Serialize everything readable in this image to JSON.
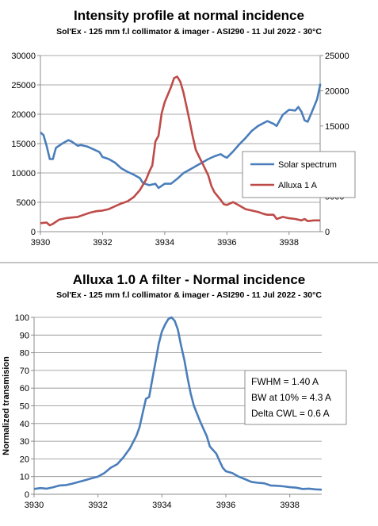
{
  "chart_data": [
    {
      "type": "line",
      "title": "Intensity profile at normal incidence",
      "subtitle": "Sol'Ex - 125 mm f.l collimator & imager - ASI290 - 11 Jul 2022 - 30°C",
      "xlabel": "",
      "ylabel": "",
      "xlim": [
        3930,
        3939
      ],
      "ylim_left": [
        0,
        30000
      ],
      "ylim_right": [
        0,
        25000
      ],
      "x_ticks": [
        "3930",
        "3932",
        "3934",
        "3936",
        "3938"
      ],
      "y_ticks_left": [
        "0",
        "5000",
        "10000",
        "15000",
        "20000",
        "25000",
        "30000"
      ],
      "y_ticks_right": [
        "0",
        "5000",
        "10000",
        "15000",
        "20000",
        "25000"
      ],
      "grid": "horizontal",
      "legend": "right",
      "series": [
        {
          "name": "Solar spectrum",
          "axis": "right",
          "color": "#4a7ebb",
          "points": [
            [
              3930.0,
              14100
            ],
            [
              3930.1,
              13700
            ],
            [
              3930.2,
              12200
            ],
            [
              3930.3,
              10300
            ],
            [
              3930.4,
              10300
            ],
            [
              3930.5,
              11900
            ],
            [
              3930.7,
              12500
            ],
            [
              3930.9,
              13000
            ],
            [
              3931.0,
              12800
            ],
            [
              3931.2,
              12200
            ],
            [
              3931.3,
              12300
            ],
            [
              3931.5,
              12100
            ],
            [
              3931.7,
              11700
            ],
            [
              3931.9,
              11300
            ],
            [
              3932.0,
              10600
            ],
            [
              3932.2,
              10300
            ],
            [
              3932.4,
              9800
            ],
            [
              3932.6,
              9000
            ],
            [
              3932.8,
              8500
            ],
            [
              3933.0,
              8100
            ],
            [
              3933.2,
              7600
            ],
            [
              3933.3,
              6900
            ],
            [
              3933.5,
              6600
            ],
            [
              3933.7,
              6800
            ],
            [
              3933.8,
              6200
            ],
            [
              3934.0,
              6800
            ],
            [
              3934.2,
              6800
            ],
            [
              3934.4,
              7500
            ],
            [
              3934.6,
              8300
            ],
            [
              3934.8,
              8800
            ],
            [
              3935.0,
              9300
            ],
            [
              3935.2,
              9800
            ],
            [
              3935.4,
              10300
            ],
            [
              3935.6,
              10700
            ],
            [
              3935.8,
              11000
            ],
            [
              3935.9,
              10700
            ],
            [
              3936.0,
              10500
            ],
            [
              3936.2,
              11400
            ],
            [
              3936.4,
              12400
            ],
            [
              3936.6,
              13300
            ],
            [
              3936.8,
              14300
            ],
            [
              3937.0,
              15000
            ],
            [
              3937.3,
              15700
            ],
            [
              3937.5,
              15300
            ],
            [
              3937.6,
              15000
            ],
            [
              3937.8,
              16600
            ],
            [
              3938.0,
              17300
            ],
            [
              3938.2,
              17200
            ],
            [
              3938.3,
              17700
            ],
            [
              3938.4,
              17000
            ],
            [
              3938.5,
              15800
            ],
            [
              3938.6,
              15600
            ],
            [
              3938.8,
              17700
            ],
            [
              3938.9,
              18800
            ],
            [
              3939.0,
              20800
            ],
            [
              3939.0,
              21000
            ]
          ]
        },
        {
          "name": "Alluxa 1 A",
          "axis": "right",
          "color": "#be4b48",
          "points": [
            [
              3930.0,
              1200
            ],
            [
              3930.2,
              1300
            ],
            [
              3930.3,
              900
            ],
            [
              3930.4,
              1100
            ],
            [
              3930.6,
              1700
            ],
            [
              3930.8,
              1900
            ],
            [
              3931.0,
              2000
            ],
            [
              3931.2,
              2100
            ],
            [
              3931.4,
              2400
            ],
            [
              3931.6,
              2700
            ],
            [
              3931.8,
              2900
            ],
            [
              3932.0,
              3000
            ],
            [
              3932.2,
              3200
            ],
            [
              3932.4,
              3600
            ],
            [
              3932.6,
              4000
            ],
            [
              3932.8,
              4300
            ],
            [
              3933.0,
              4900
            ],
            [
              3933.2,
              5900
            ],
            [
              3933.4,
              7400
            ],
            [
              3933.5,
              8500
            ],
            [
              3933.6,
              9400
            ],
            [
              3933.7,
              12800
            ],
            [
              3933.8,
              13600
            ],
            [
              3933.9,
              16800
            ],
            [
              3934.0,
              18400
            ],
            [
              3934.2,
              20500
            ],
            [
              3934.3,
              21800
            ],
            [
              3934.4,
              22000
            ],
            [
              3934.5,
              21300
            ],
            [
              3934.6,
              19800
            ],
            [
              3934.7,
              17800
            ],
            [
              3934.8,
              15700
            ],
            [
              3934.9,
              13500
            ],
            [
              3935.0,
              11600
            ],
            [
              3935.2,
              9800
            ],
            [
              3935.4,
              8000
            ],
            [
              3935.5,
              6500
            ],
            [
              3935.6,
              5600
            ],
            [
              3935.8,
              4500
            ],
            [
              3935.9,
              3900
            ],
            [
              3936.0,
              3800
            ],
            [
              3936.2,
              4200
            ],
            [
              3936.4,
              3700
            ],
            [
              3936.6,
              3200
            ],
            [
              3936.8,
              3000
            ],
            [
              3937.0,
              2800
            ],
            [
              3937.2,
              2500
            ],
            [
              3937.3,
              2400
            ],
            [
              3937.5,
              2400
            ],
            [
              3937.6,
              1800
            ],
            [
              3937.8,
              2100
            ],
            [
              3938.0,
              1900
            ],
            [
              3938.2,
              1800
            ],
            [
              3938.4,
              1600
            ],
            [
              3938.5,
              1800
            ],
            [
              3938.6,
              1500
            ],
            [
              3938.8,
              1600
            ],
            [
              3939.0,
              1600
            ]
          ]
        }
      ]
    },
    {
      "type": "line",
      "title": "Alluxa 1.0 A filter - Normal incidence",
      "subtitle": "Sol'Ex - 125 mm f.l collimator & imager - ASI290 - 11 Jul 2022 - 30°C",
      "xlabel": "",
      "ylabel": "Normalized transmision",
      "xlim": [
        3930,
        3939
      ],
      "ylim": [
        0,
        100
      ],
      "x_ticks": [
        "3930",
        "3932",
        "3934",
        "3936",
        "3938"
      ],
      "y_ticks": [
        "0",
        "10",
        "20",
        "30",
        "40",
        "50",
        "60",
        "70",
        "80",
        "90",
        "100"
      ],
      "grid": "horizontal",
      "annotation": [
        "FWHM = 1.40  A",
        "BW at 10% = 4.3 A",
        "Delta CWL = 0.6 A"
      ],
      "series": [
        {
          "color": "#4a7ebb",
          "points": [
            [
              3930.0,
              3
            ],
            [
              3930.2,
              3.5
            ],
            [
              3930.4,
              3.2
            ],
            [
              3930.6,
              4
            ],
            [
              3930.8,
              5
            ],
            [
              3931.0,
              5.2
            ],
            [
              3931.2,
              6
            ],
            [
              3931.4,
              7
            ],
            [
              3931.6,
              8
            ],
            [
              3931.8,
              9
            ],
            [
              3932.0,
              10
            ],
            [
              3932.2,
              12
            ],
            [
              3932.4,
              15
            ],
            [
              3932.6,
              17
            ],
            [
              3932.8,
              21
            ],
            [
              3933.0,
              26
            ],
            [
              3933.2,
              33
            ],
            [
              3933.3,
              38
            ],
            [
              3933.4,
              46
            ],
            [
              3933.5,
              54
            ],
            [
              3933.6,
              55
            ],
            [
              3933.7,
              65
            ],
            [
              3933.8,
              75
            ],
            [
              3933.9,
              85
            ],
            [
              3934.0,
              92
            ],
            [
              3934.1,
              96
            ],
            [
              3934.2,
              99
            ],
            [
              3934.3,
              100
            ],
            [
              3934.4,
              98
            ],
            [
              3934.5,
              93
            ],
            [
              3934.6,
              84
            ],
            [
              3934.7,
              76
            ],
            [
              3934.8,
              66
            ],
            [
              3934.9,
              57
            ],
            [
              3935.0,
              50
            ],
            [
              3935.2,
              41
            ],
            [
              3935.4,
              33
            ],
            [
              3935.5,
              27
            ],
            [
              3935.7,
              23
            ],
            [
              3935.8,
              19
            ],
            [
              3935.9,
              15
            ],
            [
              3936.0,
              13
            ],
            [
              3936.2,
              12
            ],
            [
              3936.4,
              10
            ],
            [
              3936.6,
              8.5
            ],
            [
              3936.8,
              7
            ],
            [
              3937.0,
              6.5
            ],
            [
              3937.2,
              6.2
            ],
            [
              3937.4,
              5
            ],
            [
              3937.6,
              4.8
            ],
            [
              3937.8,
              4.5
            ],
            [
              3938.0,
              4
            ],
            [
              3938.2,
              3.7
            ],
            [
              3938.4,
              3
            ],
            [
              3938.6,
              3.2
            ],
            [
              3938.8,
              2.8
            ],
            [
              3939.0,
              2.6
            ]
          ]
        }
      ]
    }
  ]
}
